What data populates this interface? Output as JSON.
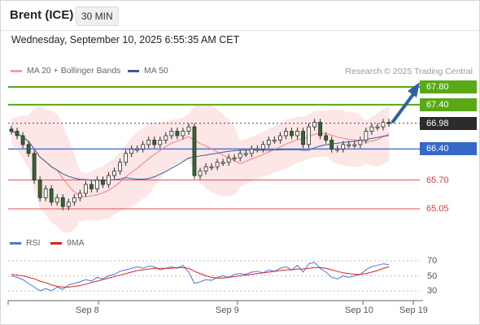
{
  "header": {
    "instrument": "Brent (ICE)",
    "timeframe": "30 MIN"
  },
  "datetime": "Wednesday, September 10, 2025 6:55:35 AM CET",
  "legend": {
    "ma20": {
      "label": "MA 20 + Bollinger Bands",
      "color": "#f08c8c"
    },
    "ma50": {
      "label": "MA 50",
      "color": "#3a5a9a"
    },
    "research": "Research © 2025 Trading Central"
  },
  "levels": [
    {
      "label": "67.80",
      "style": "green"
    },
    {
      "label": "67.40",
      "style": "green"
    },
    {
      "label": "66.98",
      "style": "dark"
    },
    {
      "label": "66.40",
      "style": "blue"
    },
    {
      "label": "65.70",
      "style": "red"
    },
    {
      "label": "65.05",
      "style": "red"
    }
  ],
  "rsi_legend": {
    "rsi": {
      "label": "RSI",
      "color": "#4a78d8"
    },
    "ma9": {
      "label": "9MA",
      "color": "#e02020"
    }
  },
  "rsi_ticks": [
    "70",
    "50",
    "30"
  ],
  "date_ticks": [
    "Sep 8",
    "Sep 9",
    "Sep 10",
    "Sep 19"
  ],
  "colors": {
    "green_line": "#5aa815",
    "blue_line": "#4a78d8",
    "red_line": "#e05050",
    "candle": "#2e6b2e",
    "arrow": "#2f5fa8"
  },
  "chart_data": {
    "type": "candlestick",
    "price_range": [
      64.8,
      68.0
    ],
    "close": [
      66.8,
      66.7,
      66.5,
      66.3,
      65.7,
      65.3,
      65.5,
      65.2,
      65.3,
      65.1,
      65.2,
      65.3,
      65.4,
      65.6,
      65.5,
      65.7,
      65.6,
      65.8,
      65.9,
      66.1,
      66.3,
      66.4,
      66.4,
      66.5,
      66.6,
      66.5,
      66.6,
      66.7,
      66.8,
      66.7,
      66.8,
      66.9,
      65.8,
      65.9,
      66.0,
      66.0,
      66.1,
      66.1,
      66.2,
      66.2,
      66.3,
      66.3,
      66.4,
      66.4,
      66.5,
      66.6,
      66.6,
      66.7,
      66.8,
      66.7,
      66.8,
      66.5,
      66.9,
      67.0,
      66.7,
      66.6,
      66.4,
      66.4,
      66.5,
      66.5,
      66.5,
      66.6,
      66.8,
      66.9,
      66.9,
      67.0,
      66.98
    ],
    "rsi_range": [
      20,
      80
    ],
    "rsi": [
      50,
      48,
      45,
      40,
      35,
      30,
      33,
      30,
      35,
      32,
      38,
      40,
      42,
      45,
      43,
      48,
      46,
      50,
      52,
      56,
      58,
      60,
      62,
      60,
      63,
      62,
      58,
      60,
      62,
      60,
      64,
      55,
      40,
      42,
      45,
      44,
      48,
      50,
      48,
      52,
      53,
      52,
      55,
      56,
      54,
      58,
      56,
      60,
      62,
      58,
      64,
      55,
      66,
      68,
      60,
      55,
      48,
      46,
      50,
      48,
      50,
      52,
      58,
      62,
      64,
      66,
      65
    ],
    "rsi_ma": [
      52,
      51,
      50,
      48,
      46,
      43,
      41,
      38,
      36,
      35,
      35,
      36,
      37,
      39,
      41,
      43,
      45,
      47,
      49,
      51,
      53,
      55,
      57,
      58,
      59,
      60,
      60,
      60,
      60,
      61,
      61,
      60,
      56,
      53,
      50,
      48,
      47,
      47,
      48,
      49,
      50,
      51,
      52,
      53,
      54,
      55,
      56,
      57,
      58,
      58,
      59,
      59,
      60,
      61,
      61,
      60,
      58,
      56,
      54,
      53,
      52,
      52,
      53,
      55,
      57,
      60,
      62
    ]
  }
}
